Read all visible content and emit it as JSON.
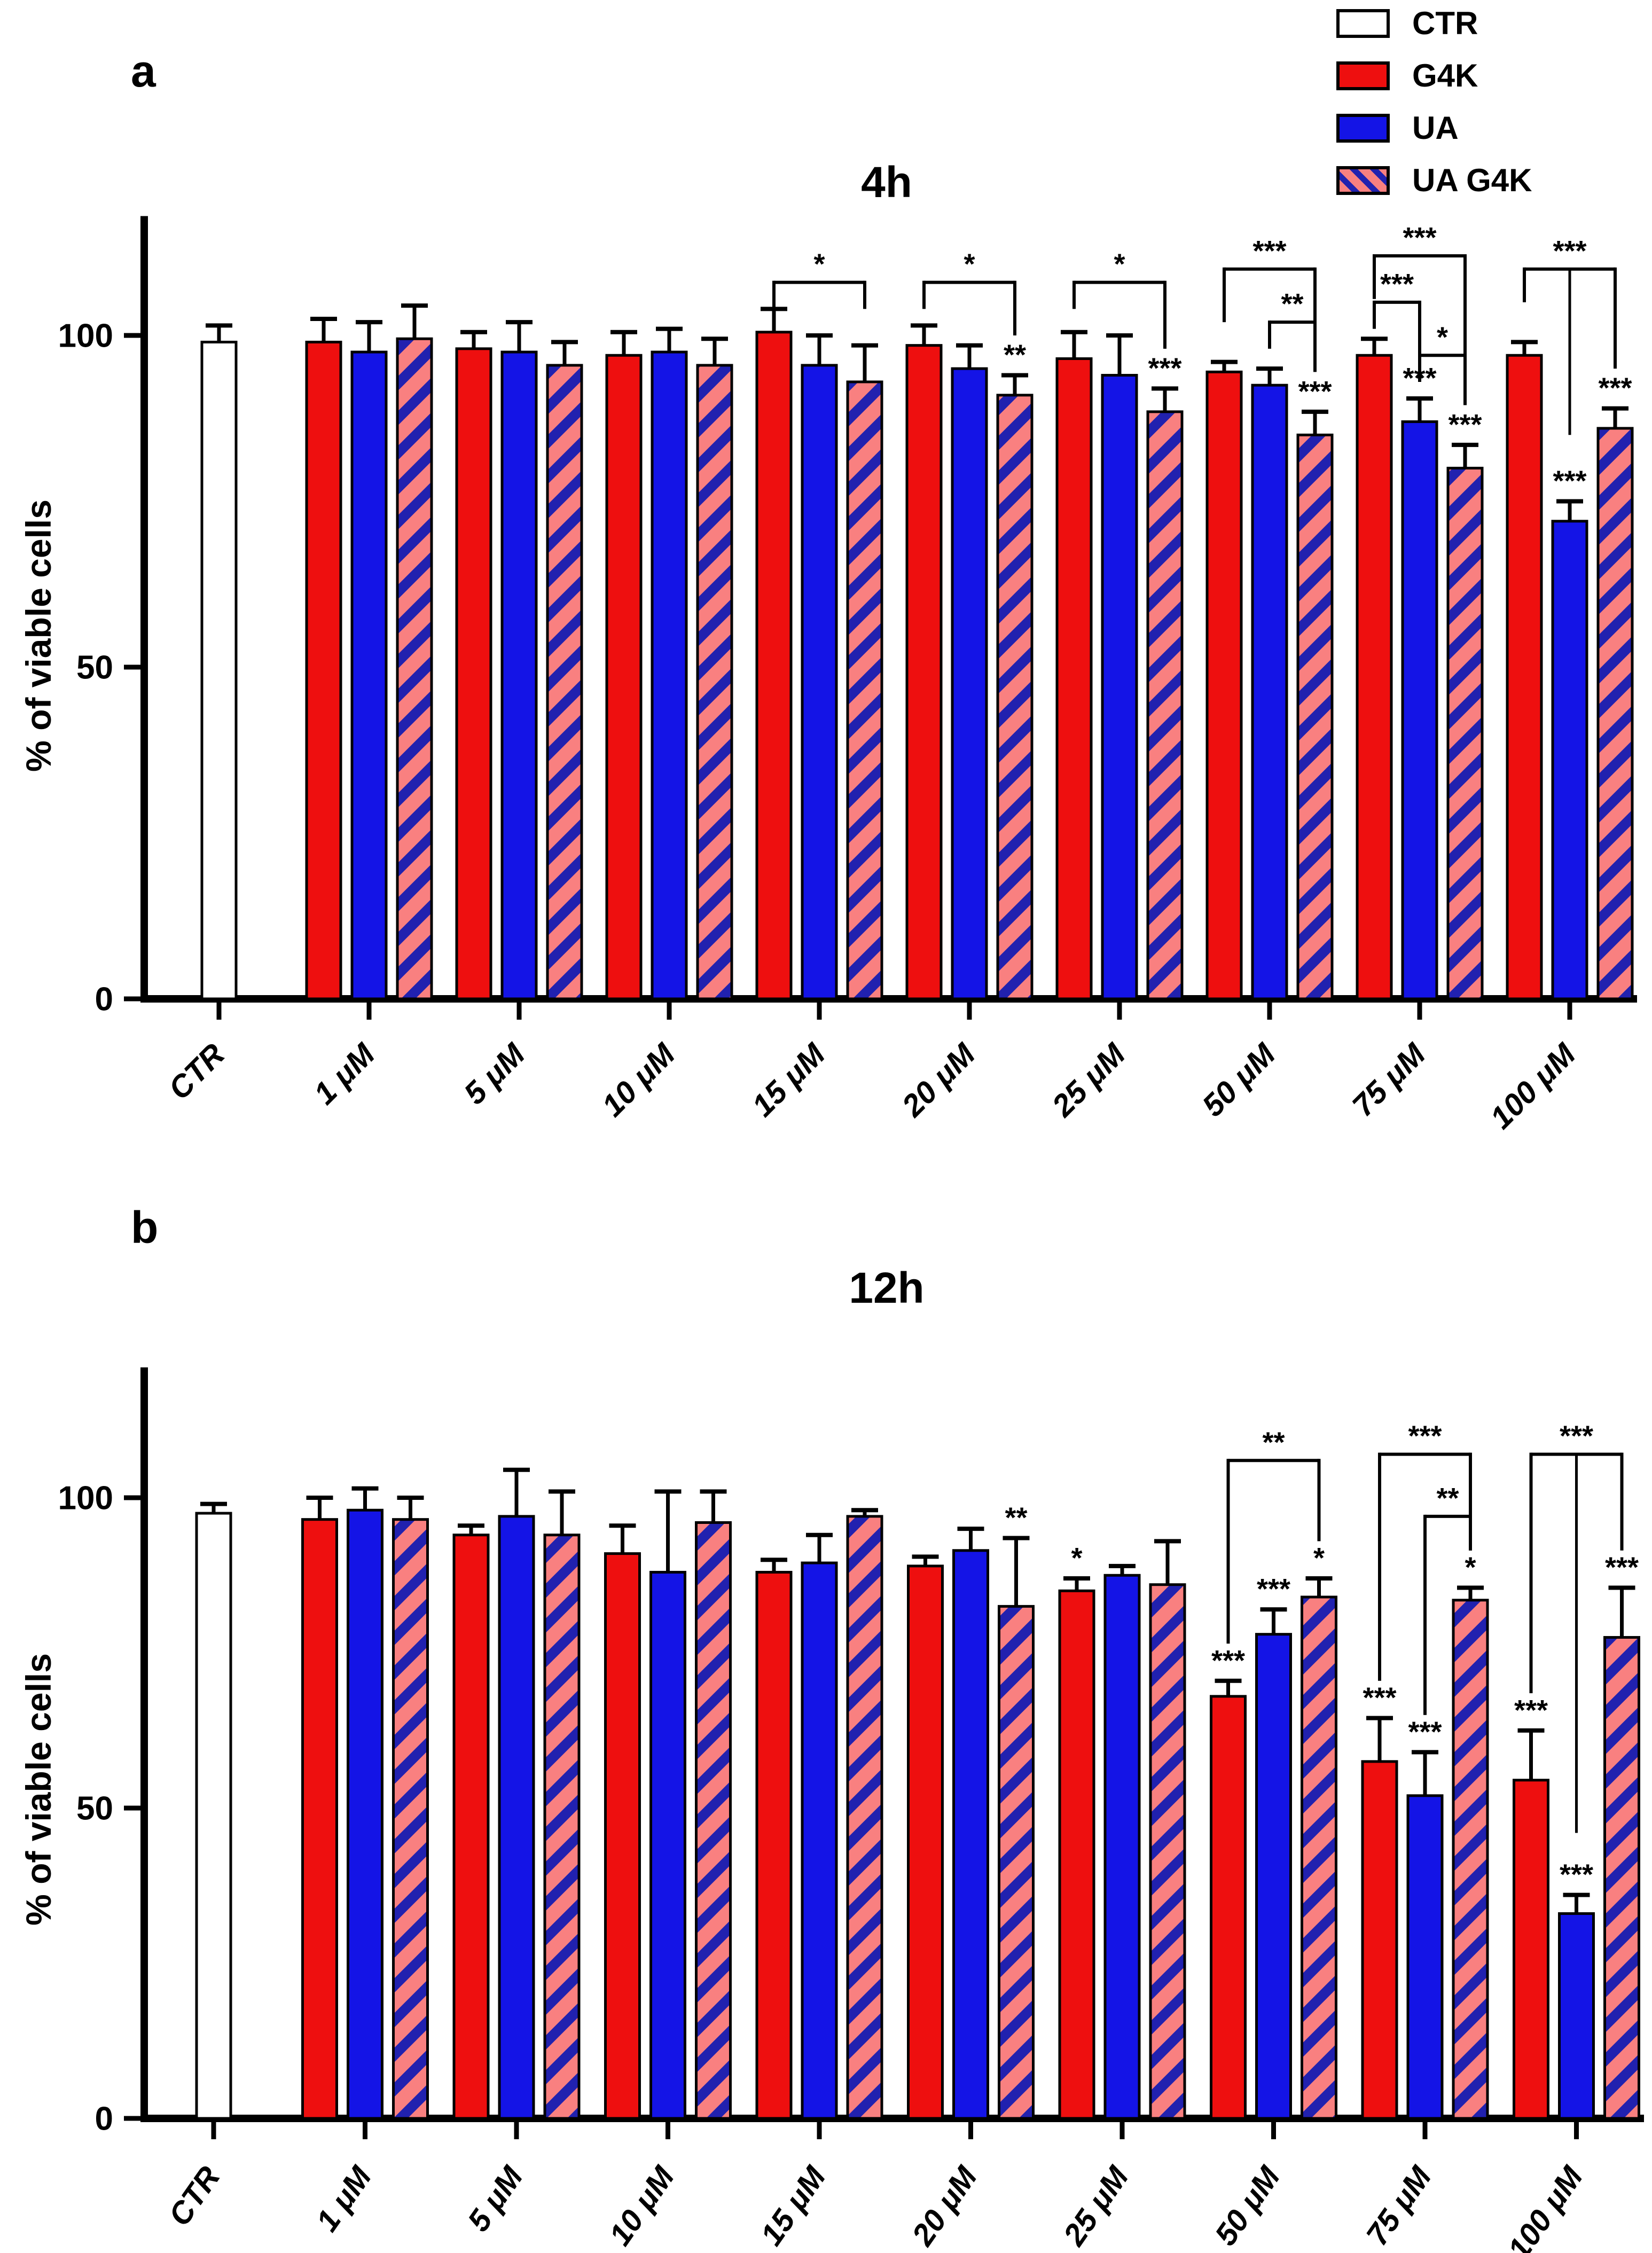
{
  "figure": {
    "background": "#ffffff"
  },
  "legend": {
    "items": [
      {
        "label": "CTR",
        "swatch": "ctr"
      },
      {
        "label": "G4K",
        "swatch": "g4k"
      },
      {
        "label": "UA",
        "swatch": "ua"
      },
      {
        "label": "UA G4K",
        "swatch": "uag4k"
      }
    ]
  },
  "colors": {
    "g4k": "#ee0f0f",
    "ua": "#1414e6",
    "stripe_bg": "#f98080",
    "stripe_fg": "#2121af",
    "ctr_fill": "#ffffff",
    "axis": "#000000"
  },
  "chart_data": [
    {
      "type": "bar",
      "panel_letter": "a",
      "title": "4h",
      "ylabel": "% of viable cells",
      "yticks": [
        0,
        50,
        100
      ],
      "ylim": [
        0,
        118
      ],
      "grid": false,
      "legend_position": "top-right",
      "xtick_angle": -45,
      "categories": [
        "CTR",
        "1 μM",
        "5 μM",
        "10 μM",
        "15 μM",
        "20 μM",
        "25 μM",
        "50 μM",
        "75 μM",
        "100 μM"
      ],
      "series": [
        {
          "name": "CTR",
          "style": "ctr",
          "values": [
            99,
            null,
            null,
            null,
            null,
            null,
            null,
            null,
            null,
            null
          ],
          "errors": [
            2.5,
            null,
            null,
            null,
            null,
            null,
            null,
            null,
            null,
            null
          ],
          "sig": [
            "",
            "",
            "",
            "",
            "",
            "",
            "",
            "",
            "",
            ""
          ]
        },
        {
          "name": "G4K",
          "style": "g4k",
          "values": [
            null,
            99,
            98,
            97,
            100.5,
            98.5,
            96.5,
            94.5,
            97,
            97
          ],
          "errors": [
            null,
            3.5,
            2.5,
            3.5,
            3.5,
            3,
            4,
            1.5,
            2.5,
            2
          ],
          "sig": [
            "",
            "",
            "",
            "",
            "",
            "",
            "",
            "",
            "",
            ""
          ]
        },
        {
          "name": "UA",
          "style": "ua",
          "values": [
            null,
            97.5,
            97.5,
            97.5,
            95.5,
            95,
            94,
            92.5,
            87,
            72
          ],
          "errors": [
            null,
            4.5,
            4.5,
            3.5,
            4.5,
            3.5,
            6,
            2.5,
            3.5,
            3
          ],
          "sig": [
            "",
            "",
            "",
            "",
            "",
            "",
            "",
            "",
            "***",
            "***"
          ]
        },
        {
          "name": "UA G4K",
          "style": "uag4k",
          "values": [
            null,
            99.5,
            95.5,
            95.5,
            93,
            91,
            88.5,
            85,
            80,
            86
          ],
          "errors": [
            null,
            5,
            3.5,
            4,
            5.5,
            3,
            3.5,
            3.5,
            3.5,
            3
          ],
          "sig": [
            "",
            "",
            "",
            "",
            "",
            "**",
            "***",
            "***",
            "***",
            "***"
          ]
        }
      ],
      "brackets": [
        {
          "category": "15 μM",
          "from": "G4K",
          "to": "UA G4K",
          "label": "*",
          "top": 108
        },
        {
          "category": "20 μM",
          "from": "G4K",
          "to": "UA G4K",
          "label": "*",
          "top": 108
        },
        {
          "category": "25 μM",
          "from": "G4K",
          "to": "UA G4K",
          "label": "*",
          "top": 108
        },
        {
          "category": "50 μM",
          "from": "G4K",
          "to": "UA G4K",
          "label": "***",
          "top": 110
        },
        {
          "category": "50 μM",
          "from": "UA",
          "to": "UA G4K",
          "label": "**",
          "top": 102
        },
        {
          "category": "75 μM",
          "from": "G4K",
          "to": "UA G4K",
          "label": "***",
          "top": 112
        },
        {
          "category": "75 μM",
          "from": "G4K",
          "to": "UA",
          "label": "***",
          "top": 105
        },
        {
          "category": "75 μM",
          "from": "UA",
          "to": "UA G4K",
          "label": "*",
          "top": 97
        },
        {
          "category": "100 μM",
          "from": "G4K",
          "to": "UA G4K",
          "label": "***",
          "top": 110,
          "mid_drop": "UA"
        }
      ]
    },
    {
      "type": "bar",
      "panel_letter": "b",
      "title": "12h",
      "ylabel": "% of viable cells",
      "yticks": [
        0,
        50,
        100
      ],
      "ylim": [
        0,
        121
      ],
      "grid": false,
      "legend_position": "none",
      "xtick_angle": -55,
      "categories": [
        "CTR",
        "1 μM",
        "5 μM",
        "10 μM",
        "15 μM",
        "20 μM",
        "25 μM",
        "50 μM",
        "75 μM",
        "100 μM"
      ],
      "series": [
        {
          "name": "CTR",
          "style": "ctr",
          "values": [
            97.5,
            null,
            null,
            null,
            null,
            null,
            null,
            null,
            null,
            null
          ],
          "errors": [
            1.5,
            null,
            null,
            null,
            null,
            null,
            null,
            null,
            null,
            null
          ],
          "sig": [
            "",
            "",
            "",
            "",
            "",
            "",
            "",
            "",
            "",
            ""
          ]
        },
        {
          "name": "G4K",
          "style": "g4k",
          "values": [
            null,
            96.5,
            94,
            91,
            88,
            89,
            85,
            68,
            57.5,
            54.5
          ],
          "errors": [
            null,
            3.5,
            1.5,
            4.5,
            2,
            1.5,
            2,
            2.5,
            7,
            8
          ],
          "sig": [
            "",
            "",
            "",
            "",
            "",
            "",
            "*",
            "***",
            "***",
            "***"
          ]
        },
        {
          "name": "UA",
          "style": "ua",
          "values": [
            null,
            98,
            97,
            88,
            89.5,
            91.5,
            87.5,
            78,
            52,
            33
          ],
          "errors": [
            null,
            3.5,
            7.5,
            13,
            4.5,
            3.5,
            1.5,
            4,
            7,
            3
          ],
          "sig": [
            "",
            "",
            "",
            "",
            "",
            "",
            "",
            "***",
            "***",
            "***"
          ]
        },
        {
          "name": "UA G4K",
          "style": "uag4k",
          "values": [
            null,
            96.5,
            94,
            96,
            97,
            82.5,
            86,
            84,
            83.5,
            77.5
          ],
          "errors": [
            null,
            3.5,
            7,
            5,
            1,
            11,
            7,
            3,
            2,
            8
          ],
          "sig": [
            "",
            "",
            "",
            "",
            "",
            "**",
            "",
            "*",
            "*",
            "***"
          ]
        }
      ],
      "brackets": [
        {
          "category": "50 μM",
          "from": "G4K",
          "to": "UA G4K",
          "label": "**",
          "top": 106
        },
        {
          "category": "75 μM",
          "from": "G4K",
          "to": "UA G4K",
          "label": "***",
          "top": 107
        },
        {
          "category": "75 μM",
          "from": "UA",
          "to": "UA G4K",
          "label": "**",
          "top": 97
        },
        {
          "category": "100 μM",
          "from": "G4K",
          "to": "UA G4K",
          "label": "***",
          "top": 107,
          "mid_drop": "UA"
        }
      ]
    }
  ]
}
